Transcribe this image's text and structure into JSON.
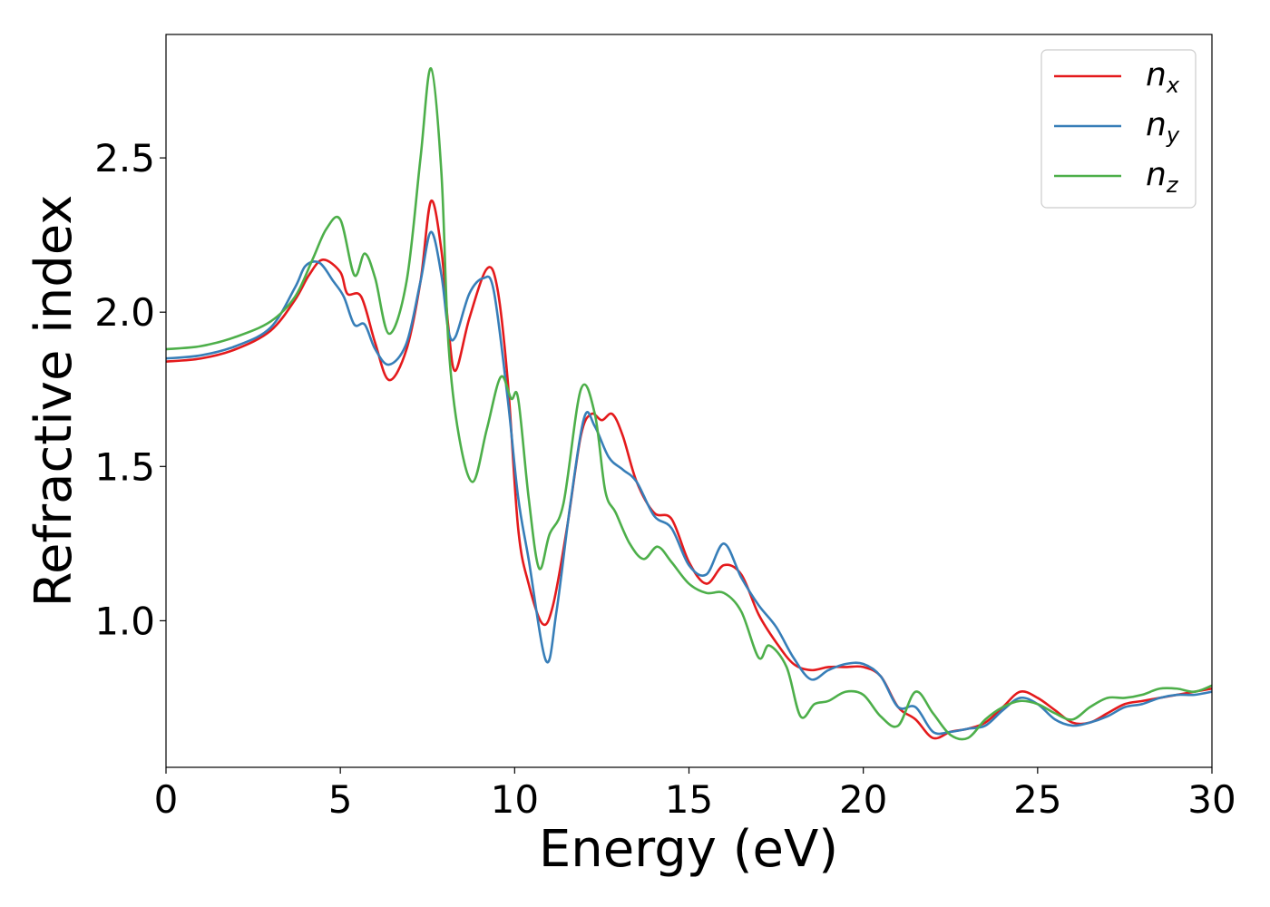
{
  "chart_data": {
    "type": "line",
    "xlabel": "Energy (eV)",
    "ylabel": "Refractive index",
    "xlim": [
      0,
      30
    ],
    "ylim": [
      0.525,
      2.9
    ],
    "xticks": [
      0,
      5,
      10,
      15,
      20,
      25,
      30
    ],
    "xtick_labels": [
      "0",
      "5",
      "10",
      "15",
      "20",
      "25",
      "30"
    ],
    "yticks": [
      1.0,
      1.5,
      2.0,
      2.5
    ],
    "ytick_labels": [
      "1.0",
      "1.5",
      "2.0",
      "2.5"
    ],
    "grid": false,
    "legend_position": "top-right",
    "series": [
      {
        "name": "n_x",
        "legend_main": "n",
        "legend_sub": "x",
        "color": "#e41a1c",
        "points": [
          [
            0,
            1.84
          ],
          [
            1,
            1.85
          ],
          [
            2,
            1.88
          ],
          [
            3,
            1.94
          ],
          [
            3.7,
            2.04
          ],
          [
            4.1,
            2.12
          ],
          [
            4.5,
            2.17
          ],
          [
            5.0,
            2.13
          ],
          [
            5.2,
            2.06
          ],
          [
            5.6,
            2.05
          ],
          [
            6.0,
            1.9
          ],
          [
            6.4,
            1.78
          ],
          [
            6.9,
            1.88
          ],
          [
            7.3,
            2.1
          ],
          [
            7.6,
            2.36
          ],
          [
            7.9,
            2.2
          ],
          [
            8.1,
            1.95
          ],
          [
            8.3,
            1.81
          ],
          [
            8.7,
            1.98
          ],
          [
            9.2,
            2.14
          ],
          [
            9.5,
            2.08
          ],
          [
            9.8,
            1.78
          ],
          [
            10.1,
            1.3
          ],
          [
            10.4,
            1.12
          ],
          [
            10.8,
            0.99
          ],
          [
            11.1,
            1.05
          ],
          [
            11.5,
            1.3
          ],
          [
            11.9,
            1.6
          ],
          [
            12.2,
            1.67
          ],
          [
            12.5,
            1.65
          ],
          [
            12.8,
            1.67
          ],
          [
            13.1,
            1.6
          ],
          [
            13.5,
            1.45
          ],
          [
            14.0,
            1.35
          ],
          [
            14.5,
            1.33
          ],
          [
            15.0,
            1.19
          ],
          [
            15.5,
            1.12
          ],
          [
            16.0,
            1.18
          ],
          [
            16.5,
            1.15
          ],
          [
            17.0,
            1.02
          ],
          [
            17.5,
            0.93
          ],
          [
            18.0,
            0.86
          ],
          [
            18.5,
            0.84
          ],
          [
            19.0,
            0.85
          ],
          [
            19.5,
            0.85
          ],
          [
            20.0,
            0.85
          ],
          [
            20.5,
            0.82
          ],
          [
            21.0,
            0.72
          ],
          [
            21.5,
            0.68
          ],
          [
            22.0,
            0.62
          ],
          [
            22.5,
            0.64
          ],
          [
            23.0,
            0.65
          ],
          [
            23.5,
            0.67
          ],
          [
            24.0,
            0.72
          ],
          [
            24.5,
            0.77
          ],
          [
            25.0,
            0.75
          ],
          [
            25.5,
            0.71
          ],
          [
            26.0,
            0.67
          ],
          [
            26.5,
            0.67
          ],
          [
            27.0,
            0.7
          ],
          [
            27.5,
            0.73
          ],
          [
            28.0,
            0.74
          ],
          [
            28.5,
            0.75
          ],
          [
            29.0,
            0.76
          ],
          [
            29.5,
            0.77
          ],
          [
            30.0,
            0.78
          ]
        ]
      },
      {
        "name": "n_y",
        "legend_main": "n",
        "legend_sub": "y",
        "color": "#377eb8",
        "points": [
          [
            0,
            1.85
          ],
          [
            1,
            1.86
          ],
          [
            2,
            1.89
          ],
          [
            3,
            1.95
          ],
          [
            3.7,
            2.08
          ],
          [
            4.0,
            2.15
          ],
          [
            4.4,
            2.16
          ],
          [
            4.8,
            2.1
          ],
          [
            5.1,
            2.05
          ],
          [
            5.4,
            1.96
          ],
          [
            5.7,
            1.96
          ],
          [
            6.0,
            1.88
          ],
          [
            6.4,
            1.83
          ],
          [
            6.9,
            1.9
          ],
          [
            7.3,
            2.1
          ],
          [
            7.6,
            2.26
          ],
          [
            7.9,
            2.12
          ],
          [
            8.1,
            1.94
          ],
          [
            8.3,
            1.92
          ],
          [
            8.7,
            2.06
          ],
          [
            9.1,
            2.11
          ],
          [
            9.4,
            2.07
          ],
          [
            9.8,
            1.72
          ],
          [
            10.1,
            1.4
          ],
          [
            10.4,
            1.2
          ],
          [
            10.9,
            0.87
          ],
          [
            11.2,
            1.03
          ],
          [
            11.6,
            1.38
          ],
          [
            12.0,
            1.66
          ],
          [
            12.3,
            1.63
          ],
          [
            12.7,
            1.53
          ],
          [
            13.1,
            1.49
          ],
          [
            13.5,
            1.45
          ],
          [
            14.0,
            1.34
          ],
          [
            14.5,
            1.3
          ],
          [
            15.0,
            1.18
          ],
          [
            15.5,
            1.15
          ],
          [
            16.0,
            1.25
          ],
          [
            16.5,
            1.14
          ],
          [
            17.0,
            1.05
          ],
          [
            17.5,
            0.98
          ],
          [
            18.0,
            0.88
          ],
          [
            18.5,
            0.81
          ],
          [
            19.0,
            0.84
          ],
          [
            19.5,
            0.86
          ],
          [
            20.0,
            0.86
          ],
          [
            20.5,
            0.82
          ],
          [
            21.0,
            0.72
          ],
          [
            21.5,
            0.72
          ],
          [
            22.0,
            0.64
          ],
          [
            22.5,
            0.64
          ],
          [
            23.0,
            0.65
          ],
          [
            23.5,
            0.66
          ],
          [
            24.0,
            0.71
          ],
          [
            24.5,
            0.75
          ],
          [
            25.0,
            0.73
          ],
          [
            25.5,
            0.68
          ],
          [
            26.0,
            0.66
          ],
          [
            26.5,
            0.67
          ],
          [
            27.0,
            0.69
          ],
          [
            27.5,
            0.72
          ],
          [
            28.0,
            0.73
          ],
          [
            28.5,
            0.75
          ],
          [
            29.0,
            0.76
          ],
          [
            29.5,
            0.76
          ],
          [
            30.0,
            0.77
          ]
        ]
      },
      {
        "name": "n_z",
        "legend_main": "n",
        "legend_sub": "z",
        "color": "#4daf4a",
        "points": [
          [
            0,
            1.88
          ],
          [
            1,
            1.89
          ],
          [
            2,
            1.92
          ],
          [
            3,
            1.97
          ],
          [
            3.7,
            2.05
          ],
          [
            4.2,
            2.17
          ],
          [
            4.6,
            2.27
          ],
          [
            5.0,
            2.3
          ],
          [
            5.4,
            2.12
          ],
          [
            5.7,
            2.19
          ],
          [
            6.0,
            2.11
          ],
          [
            6.4,
            1.93
          ],
          [
            6.9,
            2.1
          ],
          [
            7.3,
            2.5
          ],
          [
            7.6,
            2.79
          ],
          [
            7.9,
            2.45
          ],
          [
            8.1,
            1.9
          ],
          [
            8.4,
            1.6
          ],
          [
            8.8,
            1.45
          ],
          [
            9.2,
            1.62
          ],
          [
            9.6,
            1.79
          ],
          [
            9.9,
            1.72
          ],
          [
            10.1,
            1.72
          ],
          [
            10.4,
            1.4
          ],
          [
            10.7,
            1.17
          ],
          [
            11.0,
            1.28
          ],
          [
            11.4,
            1.38
          ],
          [
            11.9,
            1.75
          ],
          [
            12.3,
            1.67
          ],
          [
            12.6,
            1.42
          ],
          [
            12.9,
            1.35
          ],
          [
            13.3,
            1.25
          ],
          [
            13.7,
            1.2
          ],
          [
            14.1,
            1.24
          ],
          [
            14.5,
            1.19
          ],
          [
            15.0,
            1.12
          ],
          [
            15.5,
            1.09
          ],
          [
            16.0,
            1.09
          ],
          [
            16.5,
            1.03
          ],
          [
            17.0,
            0.88
          ],
          [
            17.3,
            0.92
          ],
          [
            17.8,
            0.85
          ],
          [
            18.2,
            0.69
          ],
          [
            18.6,
            0.73
          ],
          [
            19.0,
            0.74
          ],
          [
            19.5,
            0.77
          ],
          [
            20.0,
            0.76
          ],
          [
            20.5,
            0.69
          ],
          [
            21.0,
            0.66
          ],
          [
            21.5,
            0.77
          ],
          [
            22.0,
            0.7
          ],
          [
            22.5,
            0.63
          ],
          [
            23.0,
            0.62
          ],
          [
            23.5,
            0.68
          ],
          [
            24.0,
            0.72
          ],
          [
            24.5,
            0.74
          ],
          [
            25.0,
            0.73
          ],
          [
            25.5,
            0.7
          ],
          [
            26.0,
            0.68
          ],
          [
            26.5,
            0.72
          ],
          [
            27.0,
            0.75
          ],
          [
            27.5,
            0.75
          ],
          [
            28.0,
            0.76
          ],
          [
            28.5,
            0.78
          ],
          [
            29.0,
            0.78
          ],
          [
            29.5,
            0.77
          ],
          [
            30.0,
            0.79
          ]
        ]
      }
    ]
  }
}
